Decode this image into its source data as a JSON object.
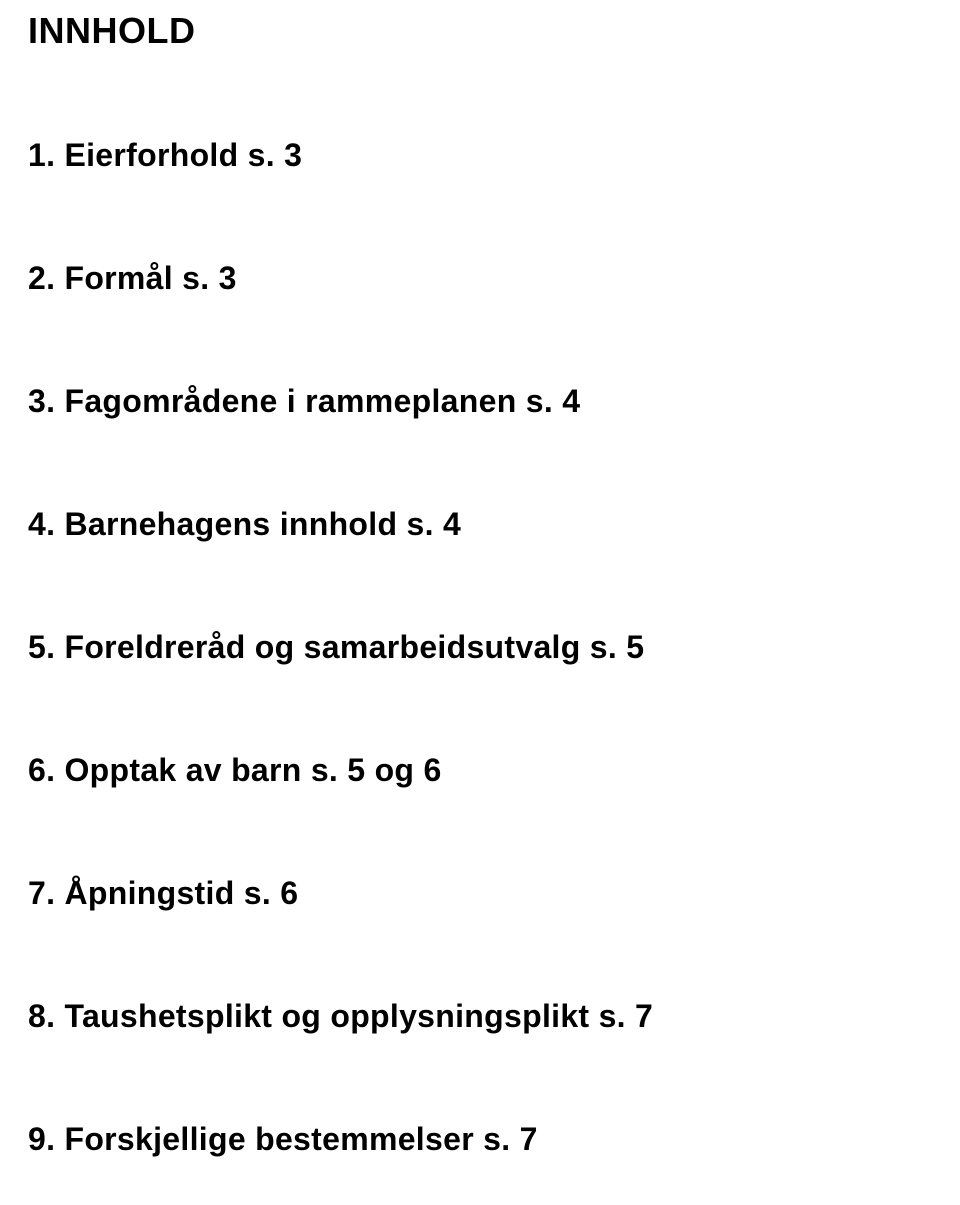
{
  "doc": {
    "heading": "INNHOLD",
    "items": [
      "1. Eierforhold s. 3",
      "2. Formål s. 3",
      "3. Fagområdene i rammeplanen s. 4",
      "4. Barnehagens innhold s. 4",
      "5. Foreldreråd og samarbeidsutvalg s. 5",
      "6. Opptak av barn s. 5 og 6",
      "7. Åpningstid s. 6",
      "8. Taushetsplikt og opplysningsplikt s. 7",
      "9. Forskjellige bestemmelser s. 7"
    ]
  }
}
